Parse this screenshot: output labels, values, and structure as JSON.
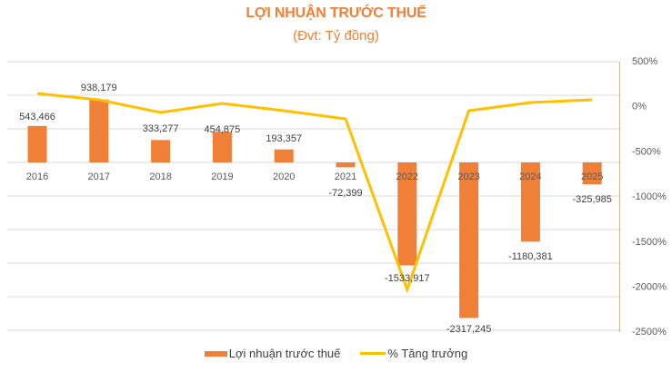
{
  "title": "LỢI NHUẬN TRƯỚC THUẾ",
  "subtitle": "(Đvt: Tỷ đồng)",
  "colors": {
    "bar": "#f07f37",
    "line": "#ffc000",
    "title": "#f07f37",
    "grid": "#d9d9d9",
    "text": "#404040"
  },
  "legend": {
    "bar_label": "Lợi nhuận trước thuế",
    "line_label": "% Tăng trưởng"
  },
  "chart_data": {
    "type": "bar+line",
    "title": "LỢI NHUẬN TRƯỚC THUẾ",
    "subtitle": "(Đvt: Tỷ đồng)",
    "categories": [
      "2016",
      "2017",
      "2018",
      "2019",
      "2020",
      "2021",
      "2022",
      "2023",
      "2024",
      "2025"
    ],
    "series": [
      {
        "name": "Lợi nhuận trước thuế",
        "type": "bar",
        "axis": "left",
        "values": [
          543466,
          938179,
          333277,
          454875,
          193357,
          -72399,
          -1533917,
          -2317245,
          -1180381,
          -325985
        ],
        "labels": [
          "543,466",
          "938,179",
          "333,277",
          "454,875",
          "193,357",
          "-72,399",
          "-1533,917",
          "-2317,245",
          "-1180,381",
          "-325,985"
        ]
      },
      {
        "name": "% Tăng trưởng",
        "type": "line",
        "axis": "right",
        "values": [
          140,
          70,
          -70,
          30,
          -50,
          -140,
          -2020,
          -50,
          40,
          70
        ]
      }
    ],
    "left_axis": {
      "range": [
        -2000000,
        2000000
      ],
      "grid_step": 500000,
      "labels_visible": false
    },
    "right_axis": {
      "range": [
        -2500,
        500
      ],
      "ticks": [
        "500%",
        "0%",
        "-500%",
        "-1000%",
        "-1500%",
        "-2000%",
        "-2500%"
      ]
    },
    "grid": true,
    "legend_position": "bottom"
  }
}
